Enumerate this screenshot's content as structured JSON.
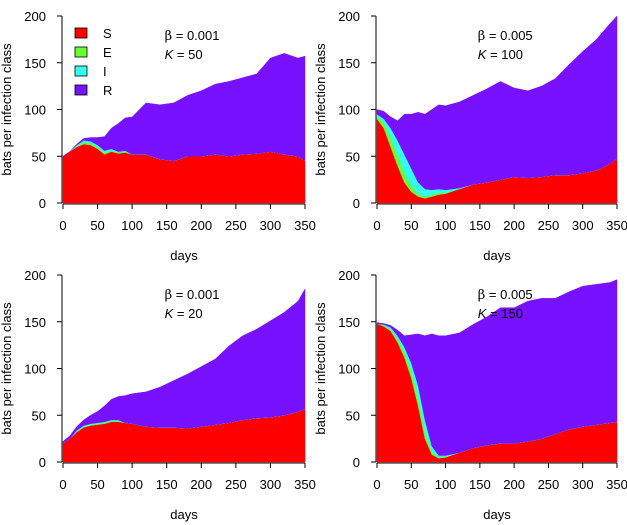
{
  "chart_data": [
    {
      "type": "area",
      "stacked": true,
      "xlabel": "days",
      "ylabel": "bats per infection class",
      "xlim": [
        0,
        350
      ],
      "ylim": [
        0,
        200
      ],
      "xticks": [
        0,
        50,
        100,
        150,
        200,
        250,
        300,
        350
      ],
      "yticks": [
        0,
        50,
        100,
        150,
        200
      ],
      "annotation": {
        "beta_symbol": "β",
        "beta_text": " = 0.001",
        "k_symbol": "K",
        "k_text": " = 50"
      },
      "legend": {
        "placement": "top-left",
        "entries": [
          {
            "label": "S",
            "color": "#ff0000"
          },
          {
            "label": "E",
            "color": "#66ff33"
          },
          {
            "label": "I",
            "color": "#33ffee"
          },
          {
            "label": "R",
            "color": "#7711ff"
          }
        ]
      },
      "x": [
        0,
        10,
        20,
        30,
        40,
        50,
        60,
        70,
        80,
        90,
        100,
        120,
        140,
        160,
        180,
        200,
        220,
        240,
        260,
        280,
        300,
        320,
        340,
        350
      ],
      "series": [
        {
          "name": "S",
          "color": "#ff0000",
          "values": [
            50,
            55,
            60,
            63,
            62,
            58,
            52,
            55,
            53,
            54,
            52,
            52,
            47,
            45,
            50,
            50,
            52,
            50,
            52,
            53,
            55,
            52,
            50,
            45
          ]
        },
        {
          "name": "E",
          "color": "#66ff33",
          "values": [
            0,
            0,
            1,
            2,
            2,
            2,
            2,
            1,
            1,
            1,
            0,
            0,
            0,
            0,
            0,
            0,
            0,
            0,
            0,
            0,
            0,
            0,
            0,
            0
          ]
        },
        {
          "name": "I",
          "color": "#33ffee",
          "values": [
            0,
            0,
            1,
            2,
            2,
            2,
            2,
            2,
            1,
            1,
            0,
            0,
            0,
            0,
            0,
            0,
            0,
            0,
            0,
            0,
            0,
            0,
            0,
            0
          ]
        },
        {
          "name": "R",
          "color": "#7711ff",
          "values": [
            0,
            0,
            1,
            2,
            4,
            8,
            15,
            22,
            30,
            35,
            40,
            55,
            58,
            62,
            65,
            70,
            75,
            80,
            82,
            85,
            100,
            108,
            105,
            112
          ]
        }
      ]
    },
    {
      "type": "area",
      "stacked": true,
      "xlabel": "days",
      "ylabel": "bats per infection class",
      "xlim": [
        0,
        350
      ],
      "ylim": [
        0,
        200
      ],
      "xticks": [
        0,
        50,
        100,
        150,
        200,
        250,
        300,
        350
      ],
      "yticks": [
        0,
        50,
        100,
        150,
        200
      ],
      "annotation": {
        "beta_symbol": "β",
        "beta_text": " = 0.005",
        "k_symbol": "K",
        "k_text": " = 100"
      },
      "x": [
        0,
        10,
        20,
        30,
        40,
        50,
        60,
        70,
        80,
        90,
        100,
        120,
        140,
        160,
        180,
        200,
        220,
        240,
        260,
        280,
        300,
        320,
        340,
        350
      ],
      "series": [
        {
          "name": "S",
          "color": "#ff0000",
          "values": [
            90,
            80,
            60,
            40,
            22,
            12,
            7,
            5,
            7,
            9,
            10,
            15,
            20,
            22,
            25,
            28,
            27,
            28,
            30,
            30,
            32,
            35,
            42,
            48
          ]
        },
        {
          "name": "E",
          "color": "#66ff33",
          "values": [
            3,
            6,
            10,
            12,
            10,
            7,
            3,
            2,
            2,
            2,
            1,
            0,
            0,
            0,
            0,
            0,
            0,
            0,
            0,
            0,
            0,
            0,
            0,
            0
          ]
        },
        {
          "name": "I",
          "color": "#33ffee",
          "values": [
            2,
            4,
            10,
            15,
            20,
            18,
            12,
            8,
            5,
            4,
            3,
            1,
            0,
            0,
            0,
            0,
            0,
            0,
            0,
            0,
            0,
            0,
            0,
            0
          ]
        },
        {
          "name": "R",
          "color": "#7711ff",
          "values": [
            5,
            8,
            12,
            21,
            43,
            58,
            75,
            80,
            86,
            90,
            90,
            92,
            95,
            100,
            105,
            95,
            93,
            97,
            103,
            118,
            130,
            140,
            150,
            152
          ]
        }
      ]
    },
    {
      "type": "area",
      "stacked": true,
      "xlabel": "days",
      "ylabel": "bats per infection class",
      "xlim": [
        0,
        350
      ],
      "ylim": [
        0,
        200
      ],
      "xticks": [
        0,
        50,
        100,
        150,
        200,
        250,
        300,
        350
      ],
      "yticks": [
        0,
        50,
        100,
        150,
        200
      ],
      "annotation": {
        "beta_symbol": "β",
        "beta_text": " = 0.001",
        "k_symbol": "K",
        "k_text": " = 20"
      },
      "x": [
        0,
        10,
        20,
        30,
        40,
        50,
        60,
        70,
        80,
        90,
        100,
        120,
        140,
        160,
        180,
        200,
        220,
        240,
        260,
        280,
        300,
        320,
        340,
        350
      ],
      "series": [
        {
          "name": "S",
          "color": "#ff0000",
          "values": [
            20,
            25,
            32,
            37,
            39,
            40,
            41,
            43,
            43,
            42,
            41,
            38,
            37,
            37,
            36,
            38,
            40,
            42,
            45,
            47,
            48,
            50,
            54,
            57
          ]
        },
        {
          "name": "E",
          "color": "#66ff33",
          "values": [
            0,
            0,
            1,
            1,
            1,
            1,
            1,
            1,
            1,
            0,
            0,
            0,
            0,
            0,
            0,
            0,
            0,
            0,
            0,
            0,
            0,
            0,
            0,
            0
          ]
        },
        {
          "name": "I",
          "color": "#33ffee",
          "values": [
            0,
            0,
            1,
            1,
            1,
            1,
            1,
            1,
            1,
            0,
            0,
            0,
            0,
            0,
            0,
            0,
            0,
            0,
            0,
            0,
            0,
            0,
            0,
            0
          ]
        },
        {
          "name": "R",
          "color": "#7711ff",
          "values": [
            2,
            3,
            4,
            6,
            9,
            12,
            17,
            22,
            25,
            29,
            32,
            37,
            43,
            50,
            58,
            64,
            70,
            82,
            90,
            95,
            103,
            110,
            118,
            128
          ]
        }
      ]
    },
    {
      "type": "area",
      "stacked": true,
      "xlabel": "days",
      "ylabel": "bats per infection class",
      "xlim": [
        0,
        350
      ],
      "ylim": [
        0,
        200
      ],
      "xticks": [
        0,
        50,
        100,
        150,
        200,
        250,
        300,
        350
      ],
      "yticks": [
        0,
        50,
        100,
        150,
        200
      ],
      "annotation": {
        "beta_symbol": "β",
        "beta_text": " = 0.005",
        "k_symbol": "K",
        "k_text": " = 150"
      },
      "x": [
        0,
        10,
        20,
        30,
        40,
        50,
        60,
        70,
        80,
        90,
        100,
        120,
        140,
        160,
        180,
        200,
        220,
        240,
        260,
        280,
        300,
        320,
        340,
        350
      ],
      "series": [
        {
          "name": "S",
          "color": "#ff0000",
          "values": [
            148,
            145,
            140,
            128,
            112,
            90,
            60,
            25,
            8,
            4,
            5,
            10,
            15,
            18,
            20,
            20,
            22,
            25,
            30,
            35,
            38,
            40,
            42,
            43
          ]
        },
        {
          "name": "E",
          "color": "#66ff33",
          "values": [
            0,
            1,
            2,
            4,
            6,
            8,
            10,
            8,
            3,
            1,
            1,
            0,
            0,
            0,
            0,
            0,
            0,
            0,
            0,
            0,
            0,
            0,
            0,
            0
          ]
        },
        {
          "name": "I",
          "color": "#33ffee",
          "values": [
            0,
            1,
            2,
            3,
            5,
            8,
            12,
            12,
            6,
            2,
            1,
            0,
            0,
            0,
            0,
            0,
            0,
            0,
            0,
            0,
            0,
            0,
            0,
            0
          ]
        },
        {
          "name": "R",
          "color": "#7711ff",
          "values": [
            1,
            1,
            2,
            6,
            12,
            30,
            55,
            90,
            120,
            128,
            128,
            128,
            132,
            137,
            145,
            145,
            150,
            150,
            145,
            147,
            150,
            150,
            150,
            152
          ]
        }
      ]
    }
  ]
}
